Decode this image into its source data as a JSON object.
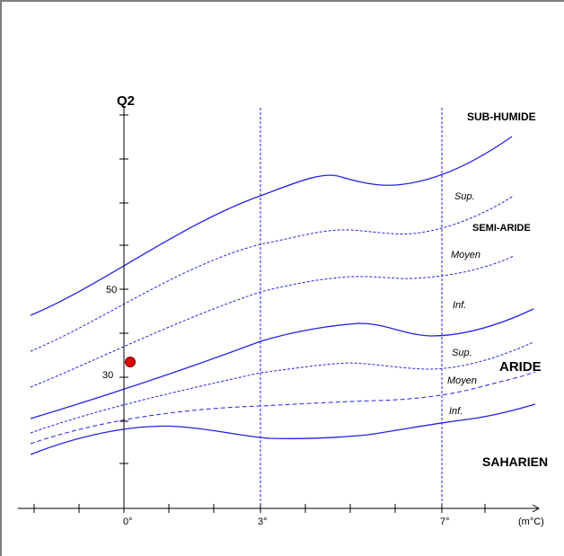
{
  "colors": {
    "curve": "#2323e6",
    "axis": "#000000",
    "point": "#e00000",
    "frame": "#7f7f7f"
  },
  "axis": {
    "y_title": "Q2",
    "y_ticks": [
      {
        "label": "50",
        "value": 50
      },
      {
        "label": "30",
        "value": 30
      }
    ],
    "x_ticks": [
      {
        "label": "0°",
        "value": 0
      },
      {
        "label": "3°",
        "value": 3
      },
      {
        "label": "7°",
        "value": 7
      }
    ],
    "x_unit": "(m°C)"
  },
  "zones": [
    {
      "key": "sub_humide",
      "label": "SUB-HUMIDE"
    },
    {
      "key": "semi_aride",
      "label": "SEMI-ARIDE"
    },
    {
      "key": "aride",
      "label": "ARIDE"
    },
    {
      "key": "saharien",
      "label": "SAHARIEN"
    }
  ],
  "subzones": [
    {
      "label": "Sup.",
      "zone": "semi_aride"
    },
    {
      "label": "Moyen",
      "zone": "semi_aride"
    },
    {
      "label": "Inf.",
      "zone": "semi_aride"
    },
    {
      "label": "Sup.",
      "zone": "aride"
    },
    {
      "label": "Moyen",
      "zone": "aride"
    },
    {
      "label": "Inf.",
      "zone": "aride"
    }
  ],
  "station": {
    "m": 0.1,
    "q2": 33
  }
}
